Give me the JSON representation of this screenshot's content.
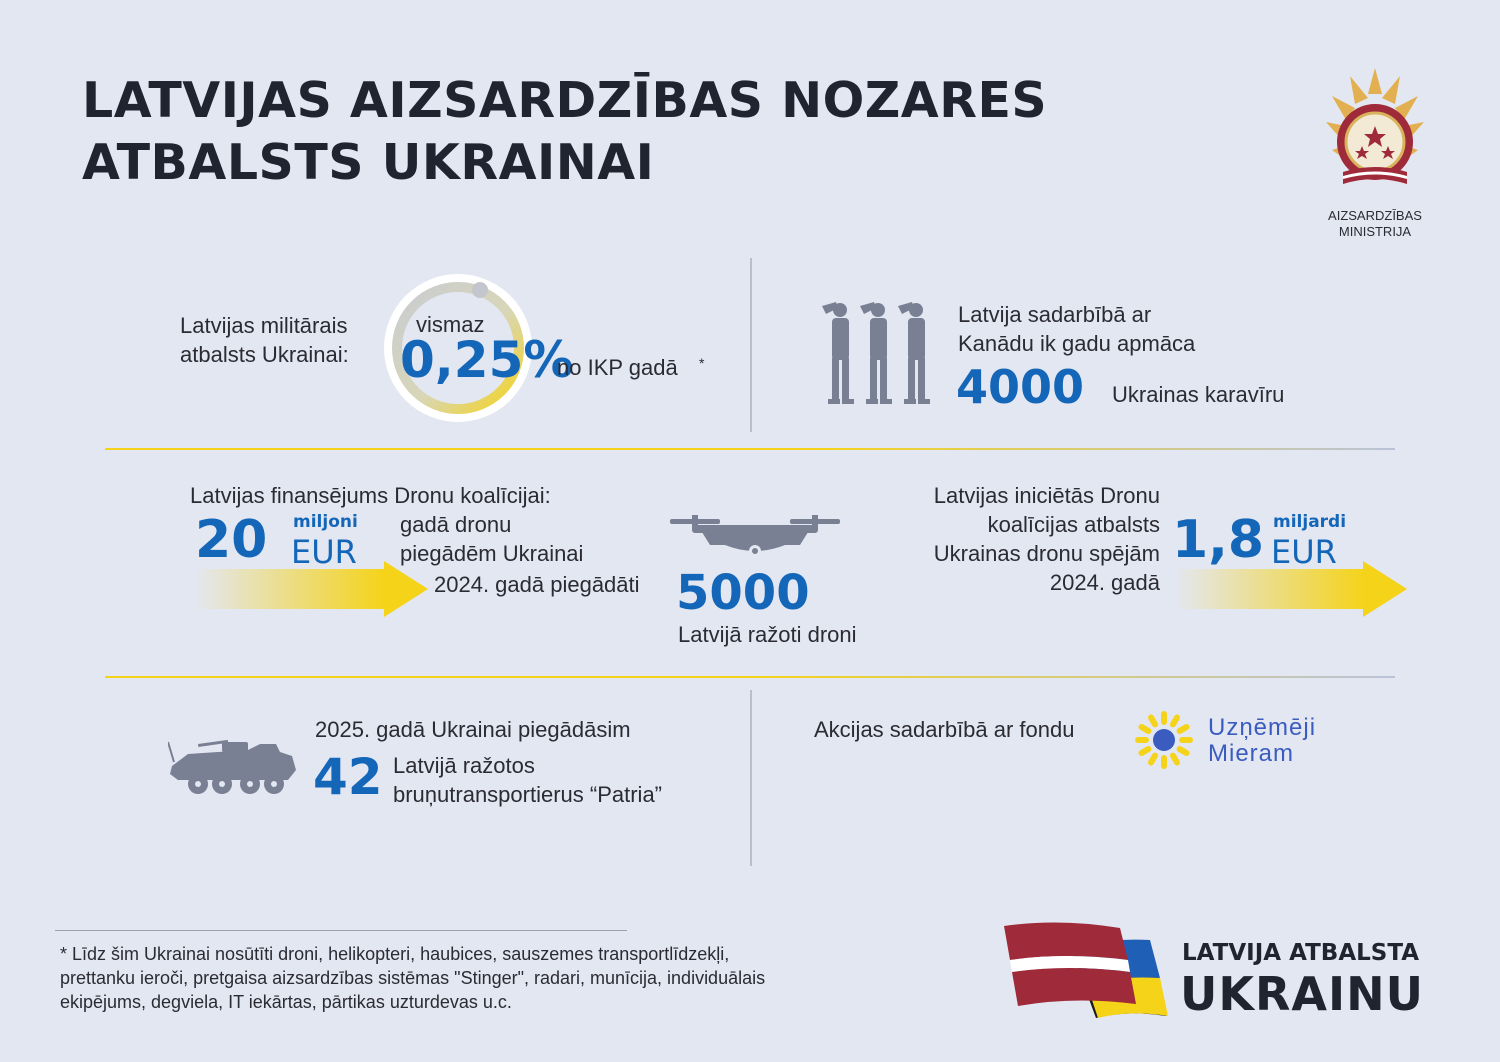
{
  "title": {
    "line1": "LATVIJAS AIZSARDZĪBAS NOZARES",
    "line2": "ATBALSTS UKRAINAI"
  },
  "ministry": {
    "line1": "AIZSARDZĪBAS",
    "line2": "MINISTRIJA",
    "icon": "ministry-emblem-icon"
  },
  "gdp": {
    "label_line1": "Latvijas militārais",
    "label_line2": "atbalsts Ukrainai:",
    "prefix": "vismaz",
    "value": "0,25%",
    "suffix": "no IKP gadā",
    "footnote_mark": "*"
  },
  "training": {
    "line1": "Latvija sadarbībā ar",
    "line2": "Kanādu ik gadu apmāca",
    "value": "4000",
    "suffix": "Ukrainas karavīru",
    "icon": "saluting-soldiers-icon"
  },
  "drone_funding": {
    "heading": "Latvijas finansējums Dronu koalīcijai:",
    "value": "20",
    "unit_top": "miljoni",
    "unit_bottom": "EUR",
    "desc_line1": "gadā dronu",
    "desc_line2": "piegādēm Ukrainai"
  },
  "drones_delivered": {
    "prefix": "2024. gadā piegādāti",
    "value": "5000",
    "suffix": "Latvijā ražoti droni",
    "icon": "drone-icon"
  },
  "coalition": {
    "line1": "Latvijas iniciētās Dronu",
    "line2": "koalīcijas atbalsts",
    "line3": "Ukrainas dronu spējām",
    "line4": "2024. gadā",
    "value": "1,8",
    "unit_top": "miljardi",
    "unit_bottom": "EUR"
  },
  "patria": {
    "line1": "2025. gadā Ukrainai piegādāsim",
    "value": "42",
    "line2": "Latvijā ražotos",
    "line3": "bruņutransportierus “Patria”",
    "icon": "armored-vehicle-icon"
  },
  "fund": {
    "text": "Akcijas sadarbībā ar fondu",
    "logo_line1": "Uzņēmēji",
    "logo_line2": "Mieram",
    "icon": "sunflower-logo-icon"
  },
  "footnote": {
    "line1": "* Līdz šim Ukrainai nosūtīti droni, helikopteri, haubices, sauszemes transportlīdzekļi,",
    "line2": "prettanku ieroči, pretgaisa aizsardzības sistēmas \"Stinger\", radari, munīcija, individuālais",
    "line3": "ekipējums, degviela,  IT iekārtas, pārtikas uzturdevas u.c."
  },
  "brand": {
    "line1": "LATVIJA ATBALSTA",
    "line2": "UKRAINU",
    "icon": "latvia-ukraine-flags-icon"
  },
  "colors": {
    "background": "#e3e7f1",
    "accent_blue": "#1466b8",
    "accent_yellow": "#f5d319",
    "latvian_red": "#9e2a3a",
    "silhouette": "#7a8094"
  }
}
